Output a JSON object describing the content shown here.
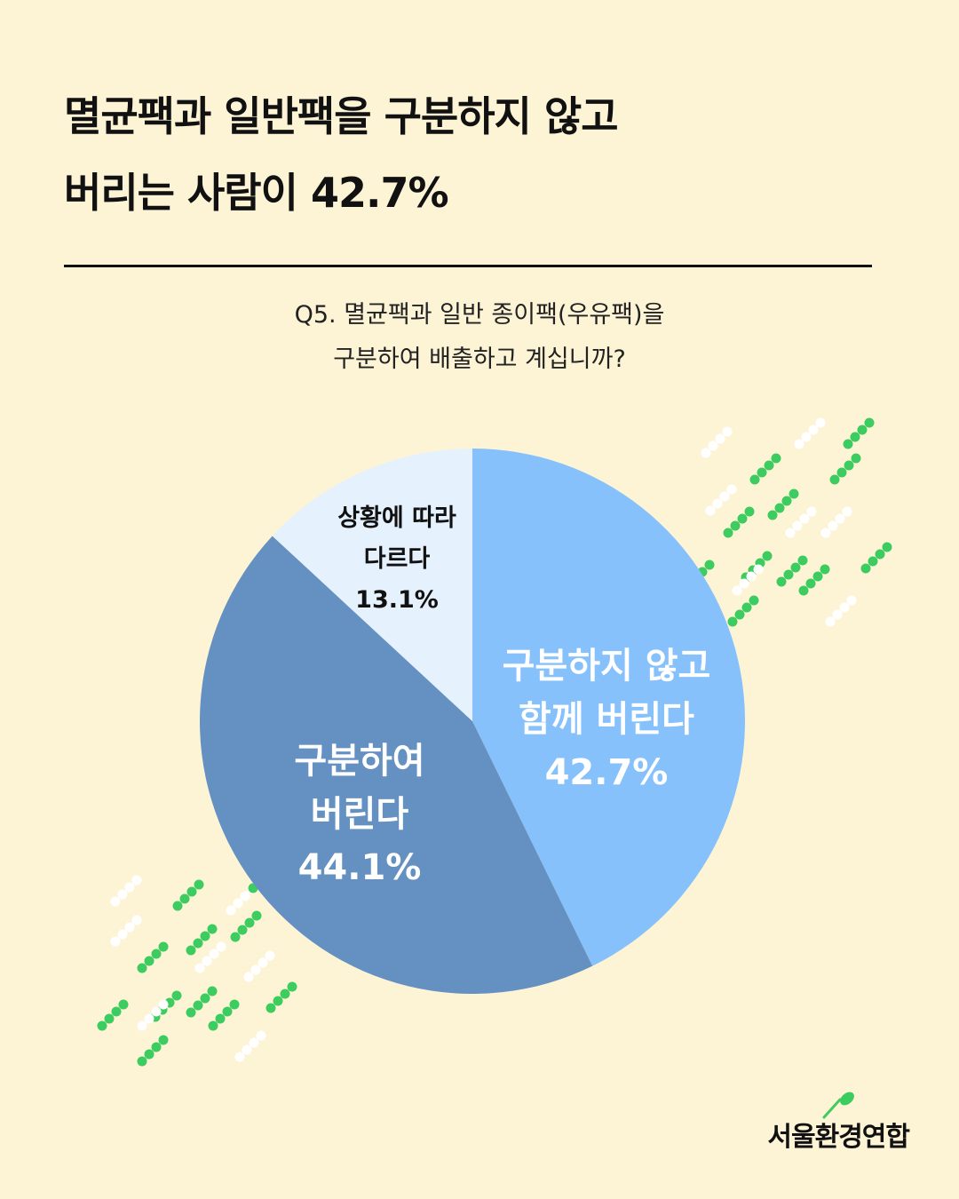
{
  "title": {
    "line1": "멸균팩과 일반팩을 구분하지 않고",
    "line2": "버리는 사람이 42.7%"
  },
  "question": {
    "line1": "Q5. 멸균팩과 일반 종이팩(우유팩)을",
    "line2": "구분하여 배출하고 계십니까?"
  },
  "chart_data": {
    "type": "pie",
    "slices": [
      {
        "label_lines": [
          "구분하지 않고",
          "함께 버린다"
        ],
        "value": 42.7,
        "value_label": "42.7%",
        "color": "#86C1FC"
      },
      {
        "label_lines": [
          "구분하여",
          "버린다"
        ],
        "value": 44.1,
        "value_label": "44.1%",
        "color": "#6491C2"
      },
      {
        "label_lines": [
          "상황에 따라",
          "다르다"
        ],
        "value": 13.1,
        "value_label": "13.1%",
        "color": "#E5F1FC"
      }
    ],
    "start": "top",
    "direction": "clockwise"
  },
  "colors": {
    "background": "#FDF4D6",
    "accent_green": "#3DCC5F",
    "dot_white": "#FFFFFF"
  },
  "logo": {
    "text": "서울환경연합",
    "icon": "leaf-icon"
  }
}
